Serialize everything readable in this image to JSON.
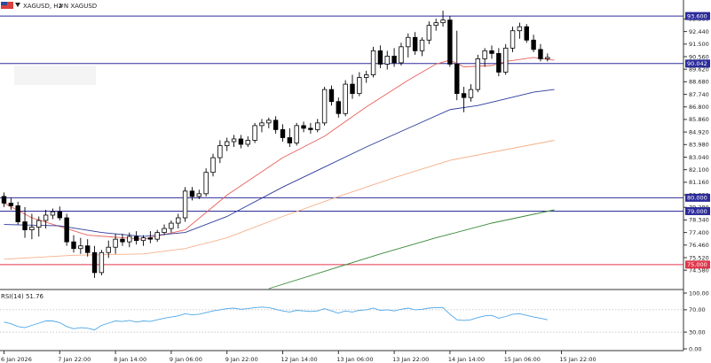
{
  "header": {
    "symbol_label": "XAGUSD, H2",
    "indicator_label": "#N XAGUSD"
  },
  "chart_data": [
    {
      "type": "candlestick",
      "title": "XAGUSD, H2",
      "ylim": [
        73.2,
        94.8
      ],
      "y_ticks": [
        74.58,
        75.52,
        76.46,
        77.4,
        78.34,
        79.28,
        80.22,
        81.16,
        82.1,
        83.04,
        83.98,
        84.92,
        85.86,
        86.8,
        87.74,
        88.68,
        89.62,
        90.56,
        91.5,
        92.44,
        93.38
      ],
      "x_tick_labels": [
        "6 Jan 2026",
        "7 Jan 22:00",
        "8 Jan 14:00",
        "9 Jan 06:00",
        "9 Jan 22:00",
        "12 Jan 14:00",
        "13 Jan 06:00",
        "13 Jan 22:00",
        "14 Jan 14:00",
        "15 Jan 06:00",
        "15 Jan 22:00"
      ],
      "x_tick_index": [
        0,
        8,
        16,
        24,
        32,
        40,
        48,
        56,
        64,
        72,
        80
      ],
      "ohlc": [
        {
          "o": 80.1,
          "h": 80.4,
          "l": 79.3,
          "c": 79.6
        },
        {
          "o": 79.6,
          "h": 80.0,
          "l": 79.1,
          "c": 79.4
        },
        {
          "o": 79.4,
          "h": 79.7,
          "l": 78.0,
          "c": 78.2
        },
        {
          "o": 78.2,
          "h": 79.3,
          "l": 77.0,
          "c": 77.6
        },
        {
          "o": 77.6,
          "h": 78.8,
          "l": 76.9,
          "c": 77.8
        },
        {
          "o": 77.8,
          "h": 78.6,
          "l": 77.1,
          "c": 78.3
        },
        {
          "o": 78.3,
          "h": 79.1,
          "l": 77.7,
          "c": 78.7
        },
        {
          "o": 78.7,
          "h": 79.2,
          "l": 78.4,
          "c": 78.95
        },
        {
          "o": 78.95,
          "h": 79.35,
          "l": 78.3,
          "c": 78.5
        },
        {
          "o": 78.5,
          "h": 78.8,
          "l": 76.4,
          "c": 76.7
        },
        {
          "o": 76.7,
          "h": 77.2,
          "l": 75.9,
          "c": 76.2
        },
        {
          "o": 76.2,
          "h": 77.0,
          "l": 75.8,
          "c": 76.4
        },
        {
          "o": 76.4,
          "h": 76.9,
          "l": 75.6,
          "c": 75.9
        },
        {
          "o": 75.9,
          "h": 76.4,
          "l": 74.0,
          "c": 74.4
        },
        {
          "o": 74.4,
          "h": 76.1,
          "l": 74.2,
          "c": 75.9
        },
        {
          "o": 75.9,
          "h": 76.8,
          "l": 75.5,
          "c": 76.3
        },
        {
          "o": 76.3,
          "h": 77.3,
          "l": 75.8,
          "c": 76.9
        },
        {
          "o": 76.9,
          "h": 77.3,
          "l": 76.4,
          "c": 76.7
        },
        {
          "o": 76.7,
          "h": 77.4,
          "l": 76.3,
          "c": 77.1
        },
        {
          "o": 77.1,
          "h": 77.5,
          "l": 76.5,
          "c": 76.8
        },
        {
          "o": 76.8,
          "h": 77.2,
          "l": 76.4,
          "c": 77.0
        },
        {
          "o": 77.0,
          "h": 77.5,
          "l": 76.6,
          "c": 76.9
        },
        {
          "o": 76.9,
          "h": 77.6,
          "l": 76.7,
          "c": 77.4
        },
        {
          "o": 77.4,
          "h": 78.0,
          "l": 77.2,
          "c": 77.7
        },
        {
          "o": 77.7,
          "h": 78.3,
          "l": 77.4,
          "c": 78.1
        },
        {
          "o": 78.1,
          "h": 78.8,
          "l": 77.7,
          "c": 78.5
        },
        {
          "o": 78.5,
          "h": 80.8,
          "l": 78.2,
          "c": 80.5
        },
        {
          "o": 80.5,
          "h": 80.8,
          "l": 79.8,
          "c": 80.1
        },
        {
          "o": 80.1,
          "h": 80.6,
          "l": 79.9,
          "c": 80.3
        },
        {
          "o": 80.3,
          "h": 82.2,
          "l": 80.1,
          "c": 81.9
        },
        {
          "o": 81.9,
          "h": 83.3,
          "l": 81.6,
          "c": 83.0
        },
        {
          "o": 83.0,
          "h": 84.3,
          "l": 82.6,
          "c": 83.9
        },
        {
          "o": 83.9,
          "h": 84.5,
          "l": 83.5,
          "c": 84.2
        },
        {
          "o": 84.2,
          "h": 84.7,
          "l": 83.8,
          "c": 84.4
        },
        {
          "o": 84.4,
          "h": 84.7,
          "l": 83.7,
          "c": 84.0
        },
        {
          "o": 84.0,
          "h": 84.6,
          "l": 83.8,
          "c": 84.3
        },
        {
          "o": 84.3,
          "h": 85.6,
          "l": 84.1,
          "c": 85.4
        },
        {
          "o": 85.4,
          "h": 85.9,
          "l": 84.9,
          "c": 85.6
        },
        {
          "o": 85.6,
          "h": 86.0,
          "l": 85.2,
          "c": 85.8
        },
        {
          "o": 85.8,
          "h": 86.1,
          "l": 84.8,
          "c": 85.1
        },
        {
          "o": 85.1,
          "h": 85.5,
          "l": 84.2,
          "c": 84.5
        },
        {
          "o": 84.5,
          "h": 85.2,
          "l": 83.8,
          "c": 84.1
        },
        {
          "o": 84.1,
          "h": 85.6,
          "l": 83.9,
          "c": 85.4
        },
        {
          "o": 85.4,
          "h": 85.7,
          "l": 84.9,
          "c": 85.2
        },
        {
          "o": 85.2,
          "h": 85.6,
          "l": 84.8,
          "c": 85.1
        },
        {
          "o": 85.1,
          "h": 85.9,
          "l": 84.9,
          "c": 85.6
        },
        {
          "o": 85.6,
          "h": 88.3,
          "l": 85.4,
          "c": 88.1
        },
        {
          "o": 88.1,
          "h": 88.4,
          "l": 86.9,
          "c": 87.2
        },
        {
          "o": 87.2,
          "h": 87.5,
          "l": 86.0,
          "c": 86.3
        },
        {
          "o": 86.3,
          "h": 88.8,
          "l": 86.1,
          "c": 88.5
        },
        {
          "o": 88.5,
          "h": 89.2,
          "l": 87.4,
          "c": 87.8
        },
        {
          "o": 87.8,
          "h": 89.4,
          "l": 87.6,
          "c": 89.0
        },
        {
          "o": 89.0,
          "h": 89.5,
          "l": 88.6,
          "c": 89.2
        },
        {
          "o": 89.2,
          "h": 91.3,
          "l": 89.0,
          "c": 91.0
        },
        {
          "o": 91.0,
          "h": 91.4,
          "l": 89.7,
          "c": 90.0
        },
        {
          "o": 90.0,
          "h": 91.0,
          "l": 89.6,
          "c": 90.6
        },
        {
          "o": 90.6,
          "h": 91.2,
          "l": 89.8,
          "c": 90.1
        },
        {
          "o": 90.1,
          "h": 91.6,
          "l": 89.9,
          "c": 91.3
        },
        {
          "o": 91.3,
          "h": 92.3,
          "l": 90.5,
          "c": 92.0
        },
        {
          "o": 92.0,
          "h": 92.4,
          "l": 90.7,
          "c": 91.0
        },
        {
          "o": 91.0,
          "h": 92.0,
          "l": 90.6,
          "c": 91.8
        },
        {
          "o": 91.8,
          "h": 93.2,
          "l": 91.5,
          "c": 92.9
        },
        {
          "o": 92.9,
          "h": 93.4,
          "l": 92.5,
          "c": 93.1
        },
        {
          "o": 93.1,
          "h": 94.0,
          "l": 92.8,
          "c": 93.3
        },
        {
          "o": 93.3,
          "h": 93.6,
          "l": 89.8,
          "c": 90.0
        },
        {
          "o": 90.0,
          "h": 92.5,
          "l": 87.3,
          "c": 87.8
        },
        {
          "o": 87.8,
          "h": 88.3,
          "l": 86.4,
          "c": 87.5
        },
        {
          "o": 87.5,
          "h": 88.5,
          "l": 87.2,
          "c": 88.1
        },
        {
          "o": 88.1,
          "h": 90.7,
          "l": 87.9,
          "c": 90.4
        },
        {
          "o": 90.4,
          "h": 91.2,
          "l": 89.8,
          "c": 91.0
        },
        {
          "o": 91.0,
          "h": 91.4,
          "l": 90.4,
          "c": 90.8
        },
        {
          "o": 90.8,
          "h": 91.2,
          "l": 89.1,
          "c": 89.4
        },
        {
          "o": 89.4,
          "h": 91.5,
          "l": 89.2,
          "c": 91.2
        },
        {
          "o": 91.2,
          "h": 92.8,
          "l": 90.9,
          "c": 92.5
        },
        {
          "o": 92.5,
          "h": 93.1,
          "l": 91.9,
          "c": 92.8
        },
        {
          "o": 92.8,
          "h": 93.0,
          "l": 91.6,
          "c": 91.8
        },
        {
          "o": 91.8,
          "h": 92.2,
          "l": 90.9,
          "c": 91.1
        },
        {
          "o": 91.1,
          "h": 91.5,
          "l": 90.2,
          "c": 90.4
        },
        {
          "o": 90.4,
          "h": 90.8,
          "l": 90.2,
          "c": 90.5
        }
      ],
      "moving_averages": [
        {
          "color": "#e8605a",
          "points": [
            [
              0,
              79.6
            ],
            [
              4,
              78.5
            ],
            [
              12,
              77.2
            ],
            [
              20,
              76.9
            ],
            [
              26,
              77.6
            ],
            [
              32,
              80.2
            ],
            [
              40,
              83.0
            ],
            [
              46,
              84.6
            ],
            [
              52,
              86.8
            ],
            [
              58,
              88.8
            ],
            [
              62,
              90.0
            ],
            [
              64,
              90.3
            ],
            [
              66,
              89.8
            ],
            [
              70,
              89.9
            ],
            [
              72,
              90.2
            ],
            [
              76,
              90.5
            ],
            [
              79,
              90.3
            ]
          ]
        },
        {
          "color": "#2b3a9a",
          "points": [
            [
              0,
              78.0
            ],
            [
              8,
              77.9
            ],
            [
              14,
              77.4
            ],
            [
              20,
              77.1
            ],
            [
              26,
              77.4
            ],
            [
              32,
              78.6
            ],
            [
              40,
              80.8
            ],
            [
              46,
              82.3
            ],
            [
              52,
              83.8
            ],
            [
              58,
              85.2
            ],
            [
              64,
              86.6
            ],
            [
              68,
              86.9
            ],
            [
              72,
              87.4
            ],
            [
              76,
              87.9
            ],
            [
              79,
              88.1
            ]
          ]
        },
        {
          "color": "#f5b08a",
          "points": [
            [
              0,
              75.4
            ],
            [
              10,
              75.7
            ],
            [
              20,
              75.8
            ],
            [
              26,
              76.2
            ],
            [
              32,
              77.0
            ],
            [
              40,
              78.6
            ],
            [
              48,
              80.1
            ],
            [
              56,
              81.5
            ],
            [
              64,
              82.8
            ],
            [
              72,
              83.6
            ],
            [
              79,
              84.3
            ]
          ]
        },
        {
          "color": "#3a8a3a",
          "points": [
            [
              38,
              73.2
            ],
            [
              46,
              74.5
            ],
            [
              54,
              75.8
            ],
            [
              62,
              77.0
            ],
            [
              70,
              78.1
            ],
            [
              79,
              79.1
            ]
          ]
        }
      ],
      "horizontal_lines": [
        {
          "value": 93.6,
          "label": "93.600",
          "color": "#2b2b9a"
        },
        {
          "value": 90.042,
          "label": "90.042",
          "color": "#2b2b9a"
        },
        {
          "value": 80.0,
          "label": "80.000",
          "color": "#2b2b9a"
        },
        {
          "value": 79.0,
          "label": "79.000",
          "color": "#2b2b9a"
        },
        {
          "value": 75.0,
          "label": "75.000",
          "color": "#e0364a"
        }
      ],
      "bull_color": "#ffffff",
      "bear_color": "#000000"
    },
    {
      "type": "line",
      "title": "RSI(14) 51.76",
      "ylim": [
        0,
        100
      ],
      "y_ticks": [
        0,
        30.0,
        70.0,
        100.0
      ],
      "y_tick_labels": [
        "0.00",
        "30.00",
        "70.00",
        "100.00"
      ],
      "levels": [
        30,
        70
      ],
      "color": "#4da6e8",
      "values": [
        48,
        45,
        40,
        38,
        42,
        46,
        50,
        50,
        47,
        40,
        36,
        38,
        37,
        34,
        42,
        46,
        50,
        49,
        51,
        48,
        50,
        49,
        52,
        55,
        57,
        59,
        63,
        61,
        62,
        65,
        68,
        70,
        72,
        73,
        71,
        72,
        74,
        75,
        74,
        71,
        68,
        66,
        69,
        68,
        67,
        68,
        72,
        68,
        64,
        68,
        66,
        69,
        70,
        73,
        69,
        70,
        68,
        71,
        73,
        70,
        71,
        73,
        74,
        74,
        62,
        52,
        51,
        52,
        56,
        59,
        60,
        55,
        58,
        62,
        63,
        60,
        57,
        55,
        52
      ]
    }
  ]
}
